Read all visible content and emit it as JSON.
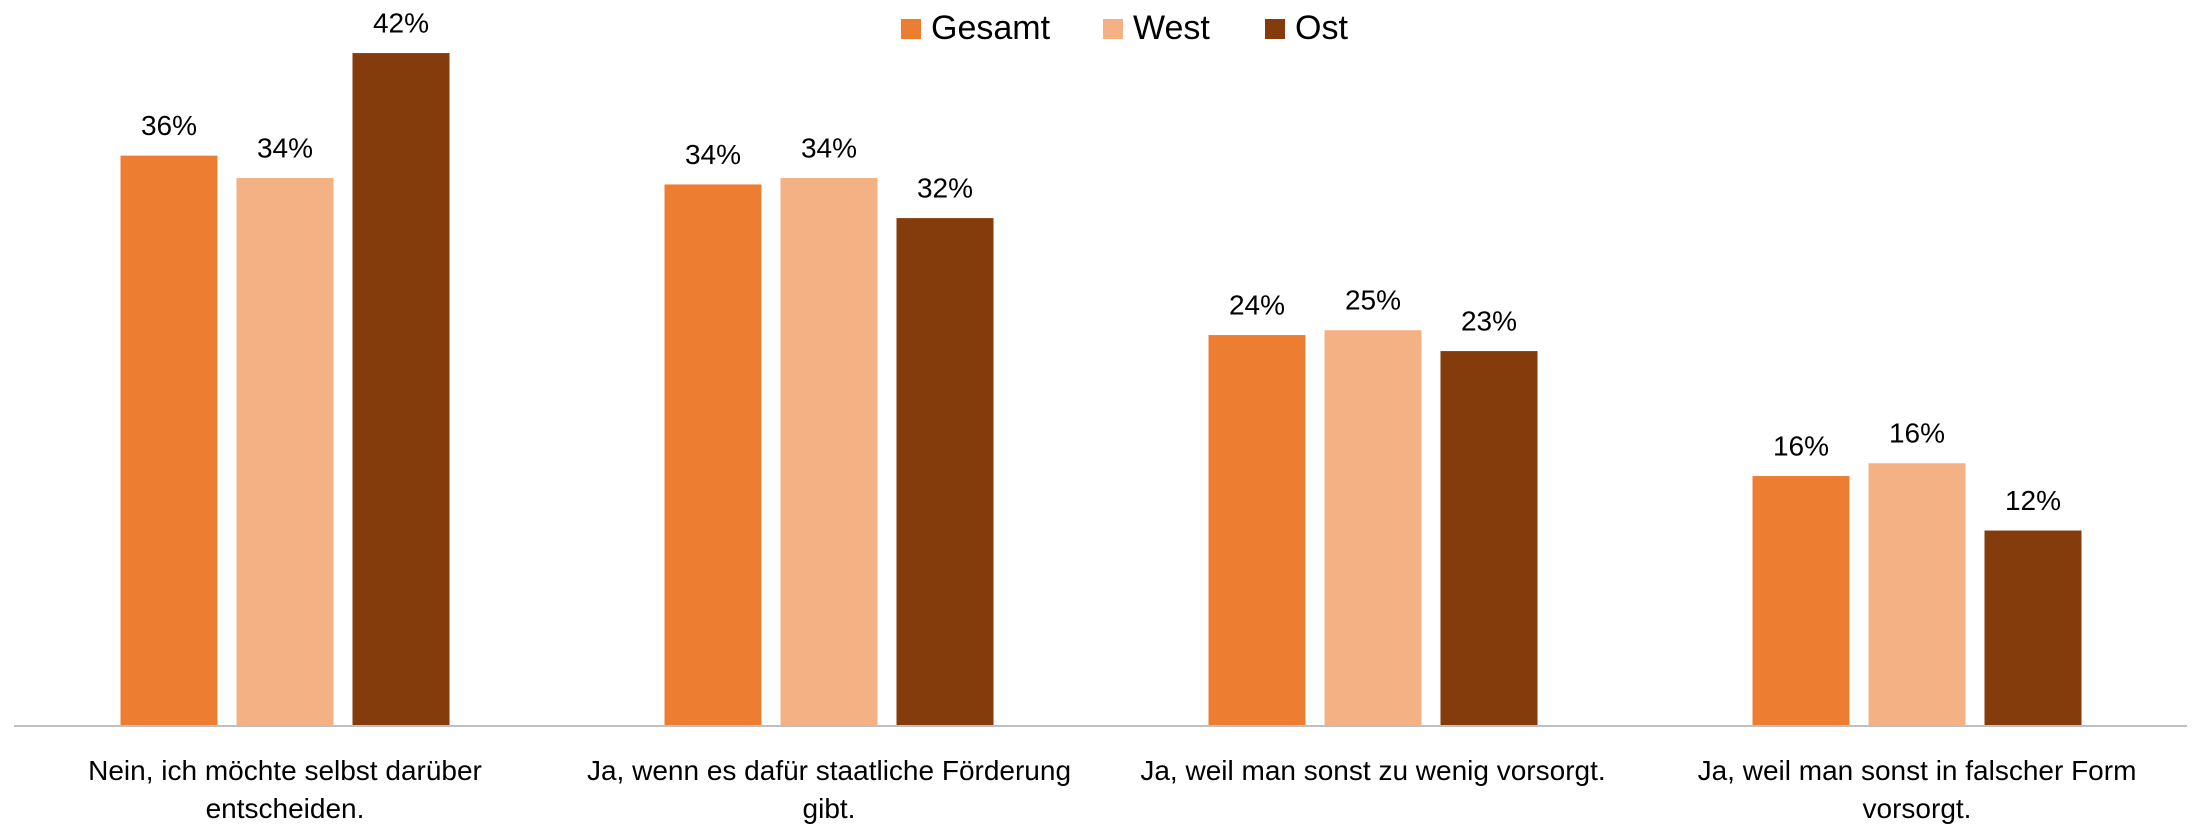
{
  "chart_data": {
    "type": "bar",
    "categories": [
      "Nein, ich möchte selbst darüber entscheiden.",
      "Ja, wenn es dafür staatliche Förderung gibt.",
      "Ja, weil man sonst zu wenig vorsorgt.",
      "Ja, weil man sonst in falscher Form vorsorgt."
    ],
    "series": [
      {
        "name": "Gesamt",
        "color": "#ed7d31",
        "values": [
          35.6,
          33.8,
          24.4,
          15.6
        ],
        "value_labels": [
          "36%",
          "34%",
          "24%",
          "16%"
        ]
      },
      {
        "name": "West",
        "color": "#f4b183",
        "values": [
          34.2,
          34.2,
          24.7,
          16.4
        ],
        "value_labels": [
          "34%",
          "34%",
          "25%",
          "16%"
        ]
      },
      {
        "name": "Ost",
        "color": "#843c0c",
        "values": [
          42.0,
          31.7,
          23.4,
          12.2
        ],
        "value_labels": [
          "42%",
          "32%",
          "23%",
          "12%"
        ]
      }
    ],
    "ylim": [
      0,
      45
    ],
    "legend": "top"
  }
}
